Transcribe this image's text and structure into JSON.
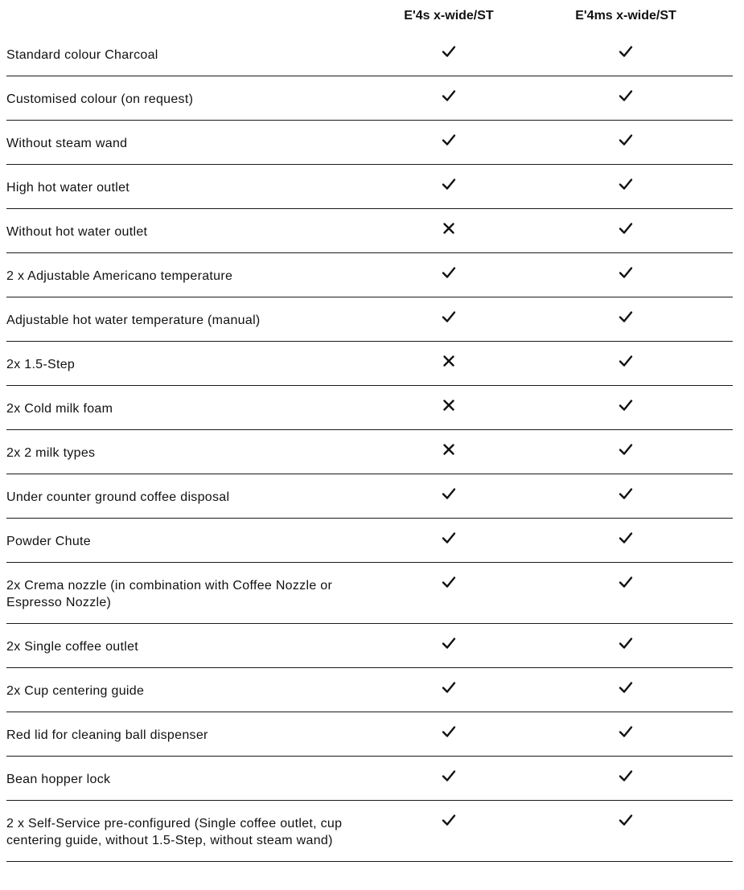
{
  "columns": [
    "E'4s x-wide/ST",
    "E'4ms x-wide/ST"
  ],
  "rows": [
    {
      "label": "Standard colour Charcoal",
      "values": [
        "check",
        "check"
      ]
    },
    {
      "label": "Customised colour (on request)",
      "values": [
        "check",
        "check"
      ]
    },
    {
      "label": "Without steam wand",
      "values": [
        "check",
        "check"
      ]
    },
    {
      "label": "High hot water outlet",
      "values": [
        "check",
        "check"
      ]
    },
    {
      "label": "Without  hot water outlet",
      "values": [
        "cross",
        "check"
      ]
    },
    {
      "label": "2 x Adjustable Americano temperature",
      "values": [
        "check",
        "check"
      ]
    },
    {
      "label": "Adjustable hot water temperature (manual)",
      "values": [
        "check",
        "check"
      ]
    },
    {
      "label": "2x 1.5-Step",
      "values": [
        "cross",
        "check"
      ]
    },
    {
      "label": "2x Cold milk foam",
      "values": [
        "cross",
        "check"
      ]
    },
    {
      "label": "2x 2 milk types",
      "values": [
        "cross",
        "check"
      ]
    },
    {
      "label": "Under counter ground coffee disposal",
      "values": [
        "check",
        "check"
      ]
    },
    {
      "label": "Powder Chute",
      "values": [
        "check",
        "check"
      ]
    },
    {
      "label": "2x Crema nozzle (in combination with Coffee Nozzle or Espresso Nozzle)",
      "values": [
        "check",
        "check"
      ]
    },
    {
      "label": "2x Single coffee outlet",
      "values": [
        "check",
        "check"
      ]
    },
    {
      "label": "2x Cup centering guide",
      "values": [
        "check",
        "check"
      ]
    },
    {
      "label": "Red lid for cleaning ball dispenser",
      "values": [
        "check",
        "check"
      ]
    },
    {
      "label": "Bean hopper lock",
      "values": [
        "check",
        "check"
      ]
    },
    {
      "label": "2 x Self-Service pre-configured (Single coffee outlet, cup centering guide, without 1.5-Step, without steam wand)",
      "values": [
        "check",
        "check"
      ]
    }
  ]
}
